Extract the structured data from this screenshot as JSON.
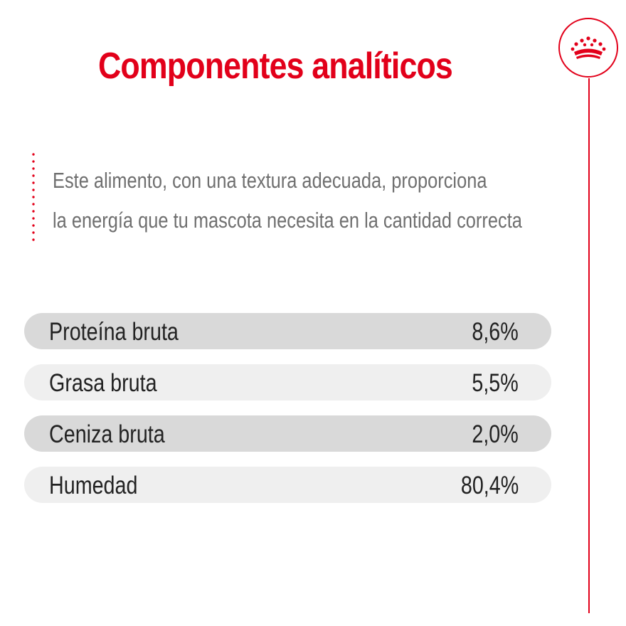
{
  "title": "Componentes analíticos",
  "description": {
    "line1": "Este alimento, con una textura adecuada, proporciona",
    "line2": "la energía que tu mascota necesita en la cantidad correcta"
  },
  "components": [
    {
      "label": "Proteína bruta",
      "value": "8,6%"
    },
    {
      "label": "Grasa bruta",
      "value": "5,5%"
    },
    {
      "label": "Ceniza bruta",
      "value": "2,0%"
    },
    {
      "label": "Humedad",
      "value": "80,4%"
    }
  ],
  "brand": {
    "logo_icon": "crown-icon",
    "accent_color": "#e2001a"
  }
}
